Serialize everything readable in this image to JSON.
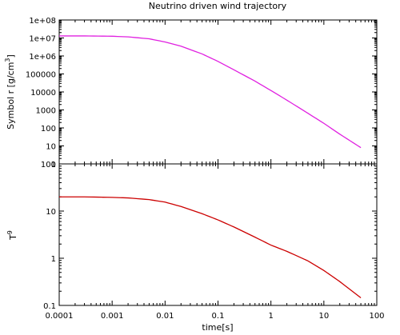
{
  "chart_data": [
    {
      "type": "line",
      "title": "Neutrino driven wind trajectory",
      "ylabel_main": "Symbol r [g/cm",
      "ylabel_sup": "3",
      "ylabel_close": "]",
      "xscale": "log",
      "yscale": "log",
      "xlim": [
        0.0001,
        100
      ],
      "ylim": [
        1,
        100000000
      ],
      "grid": false,
      "ytick_values": [
        1,
        10,
        100,
        1000,
        10000,
        100000,
        1000000,
        10000000,
        100000000
      ],
      "ytick_labels": [
        "1",
        "10",
        "100",
        "1000",
        "10000",
        "100000",
        "1e+06",
        "1e+07",
        "1e+08"
      ],
      "series": [
        {
          "color": "#e020e0",
          "x": [
            0.0001,
            0.0003,
            0.001,
            0.002,
            0.005,
            0.01,
            0.02,
            0.05,
            0.1,
            0.2,
            0.5,
            1,
            2,
            5,
            10,
            20,
            50
          ],
          "y": [
            13000000,
            13000000,
            12500000,
            11500000,
            9000000,
            6000000,
            3500000,
            1300000,
            500000,
            170000,
            40000,
            12000,
            3500,
            650,
            180,
            45,
            8
          ]
        }
      ]
    },
    {
      "type": "line",
      "xlabel": "time[s]",
      "ylabel_main": "T",
      "ylabel_sup": "9",
      "xscale": "log",
      "yscale": "log",
      "xlim": [
        0.0001,
        100
      ],
      "ylim": [
        0.1,
        100
      ],
      "grid": false,
      "xtick_values": [
        0.0001,
        0.001,
        0.01,
        0.1,
        1,
        10,
        100
      ],
      "xtick_labels": [
        "0.0001",
        "0.001",
        "0.01",
        "0.1",
        "1",
        "10",
        "100"
      ],
      "ytick_values": [
        0.1,
        1,
        10,
        100
      ],
      "ytick_labels": [
        "0.1",
        "1",
        "10",
        "100"
      ],
      "series": [
        {
          "color": "#cc0000",
          "x": [
            0.0001,
            0.0003,
            0.001,
            0.002,
            0.005,
            0.01,
            0.02,
            0.05,
            0.1,
            0.2,
            0.5,
            1,
            2,
            5,
            10,
            20,
            50
          ],
          "y": [
            20,
            20,
            19.5,
            19,
            17.5,
            15.5,
            12.5,
            8.8,
            6.5,
            4.6,
            2.8,
            1.9,
            1.4,
            0.88,
            0.55,
            0.32,
            0.145
          ]
        }
      ]
    }
  ]
}
